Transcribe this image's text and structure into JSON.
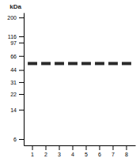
{
  "chart_data": {
    "type": "scatter",
    "title": "kDa",
    "categories": [
      "1",
      "2",
      "3",
      "4",
      "5",
      "6",
      "7",
      "8"
    ],
    "values": [
      53,
      53,
      53,
      53,
      53,
      53,
      53,
      53
    ],
    "color": "#2a2a2a",
    "marker": "band",
    "log": "y",
    "ylim": [
      5,
      230
    ],
    "yticks": [
      200,
      116,
      97,
      66,
      44,
      31,
      22,
      14,
      6
    ],
    "grid": false
  }
}
